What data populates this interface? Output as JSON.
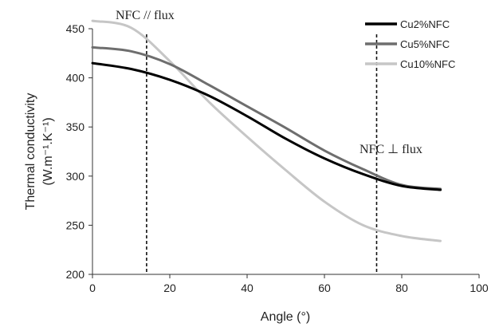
{
  "chart_data": {
    "type": "line",
    "xlabel": "Angle (°)",
    "ylabel_line1": "Thermal conductivity",
    "ylabel_line2": "(W.m⁻¹.K⁻¹)",
    "xlim": [
      0,
      100
    ],
    "ylim": [
      200,
      450
    ],
    "x_ticks": [
      0,
      20,
      40,
      60,
      80,
      100
    ],
    "y_ticks": [
      200,
      250,
      300,
      350,
      400,
      450
    ],
    "grid": false,
    "legend_position": "top-right",
    "x": [
      0,
      10,
      20,
      30,
      40,
      50,
      60,
      70,
      80,
      90
    ],
    "series": [
      {
        "name": "Cu2%NFC",
        "color": "#000000",
        "values": [
          415,
          409,
          398,
          382,
          361,
          338,
          318,
          302,
          290,
          286
        ]
      },
      {
        "name": "Cu5%NFC",
        "color": "#6e6e6e",
        "values": [
          431,
          427,
          414,
          393,
          371,
          349,
          326,
          307,
          291,
          287
        ]
      },
      {
        "name": "Cu10%NFC",
        "color": "#c6c6c6",
        "values": [
          458,
          451,
          417,
          376,
          340,
          306,
          274,
          250,
          239,
          234
        ]
      }
    ],
    "annotations": [
      {
        "text": "NFC // flux",
        "x": 14
      },
      {
        "text": "NFC ⊥ flux",
        "x": 73.5
      }
    ]
  }
}
